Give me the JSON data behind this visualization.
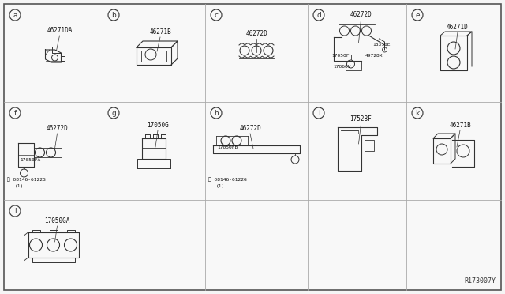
{
  "bg_color": "#f0f0f0",
  "border_color": "#000000",
  "fig_width": 6.4,
  "fig_height": 3.72,
  "dpi": 100,
  "ref_number": "R173007Y",
  "grid_color": "#999999",
  "line_color": "#333333",
  "cell_labels": {
    "a": {
      "letter": "a",
      "col": 0,
      "row": 0,
      "parts": [
        "46271DA"
      ]
    },
    "b": {
      "letter": "b",
      "col": 1,
      "row": 0,
      "parts": [
        "46271B"
      ]
    },
    "c": {
      "letter": "c",
      "col": 2,
      "row": 0,
      "parts": [
        "46272D"
      ]
    },
    "d": {
      "letter": "d",
      "col": 3,
      "row": 0,
      "parts": [
        "46272D",
        "18316E",
        "17050F",
        "49728X",
        "17060V"
      ]
    },
    "e": {
      "letter": "e",
      "col": 4,
      "row": 0,
      "parts": [
        "46271D"
      ]
    },
    "f": {
      "letter": "f",
      "col": 0,
      "row": 1,
      "parts": [
        "46272D",
        "17050FA",
        "08146-6122G",
        "(1)"
      ]
    },
    "g": {
      "letter": "g",
      "col": 1,
      "row": 1,
      "parts": [
        "17050G"
      ]
    },
    "h": {
      "letter": "h",
      "col": 2,
      "row": 1,
      "parts": [
        "46272D",
        "17050FB",
        "08146-6122G",
        "(1)"
      ]
    },
    "i": {
      "letter": "i",
      "col": 3,
      "row": 1,
      "parts": [
        "17528F"
      ]
    },
    "k": {
      "letter": "k",
      "col": 4,
      "row": 1,
      "parts": [
        "46271B"
      ]
    },
    "l": {
      "letter": "l",
      "col": 0,
      "row": 2,
      "parts": [
        "17050GA"
      ]
    }
  }
}
